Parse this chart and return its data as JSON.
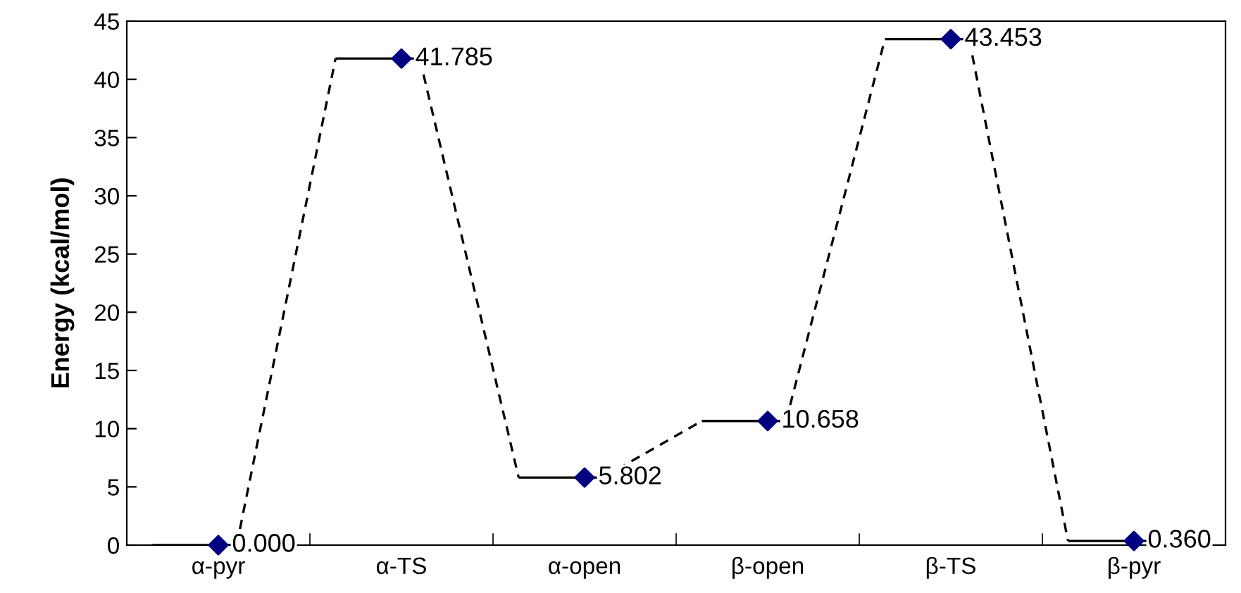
{
  "chart_data": {
    "type": "scatter",
    "ylabel": "Energy (kcal/mol)",
    "categories": [
      "α-pyr",
      "α-TS",
      "α-open",
      "β-open",
      "β-TS",
      "β-pyr"
    ],
    "series": [
      {
        "color": "#000080",
        "values": [
          0.0,
          41.785,
          5.802,
          10.658,
          43.453,
          0.36
        ],
        "value_labels": [
          "0.000",
          "41.785",
          "5.802",
          "10.658",
          "43.453",
          "0.360"
        ]
      }
    ],
    "ylim": [
      0,
      45
    ],
    "yticks": [
      0,
      5,
      10,
      15,
      20,
      25,
      30,
      35,
      40,
      45
    ],
    "marker": "diamond",
    "line_style": "dashed",
    "grid": false,
    "legend": false
  }
}
